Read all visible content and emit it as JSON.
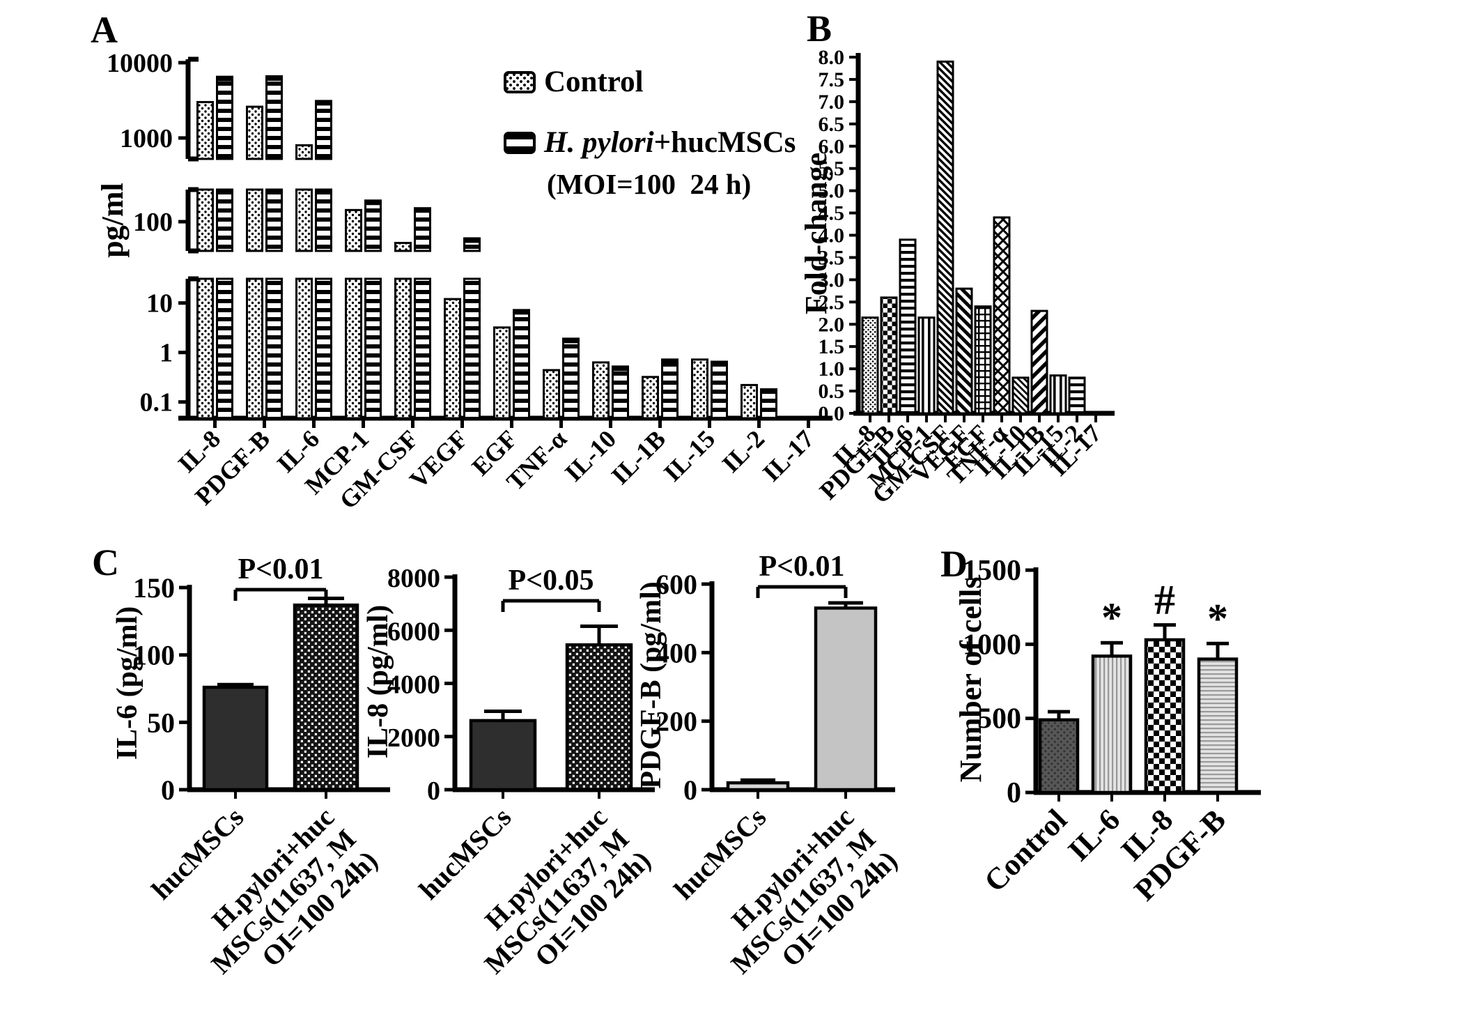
{
  "page": {
    "bg": "#ffffff",
    "ink": "#000000"
  },
  "panel_labels": {
    "a": "A",
    "b": "B",
    "c": "C",
    "d": "D"
  },
  "legend": {
    "control_label": "Control",
    "hp_species": "H. pylori",
    "hp_rest": "+hucMSCs",
    "hp_line2": "(MOI=100  24 h)"
  },
  "chart_data": [
    {
      "id": "A",
      "type": "bar",
      "scale": "log-broken",
      "title": "",
      "xlabel": "",
      "ylabel": "pg/ml",
      "legend_position": "top-right",
      "categories": [
        "IL-8",
        "PDGF-B",
        "IL-6",
        "MCP-1",
        "GM-CSF",
        "VEGF",
        "EGF",
        "TNF-α",
        "IL-10",
        "IL-1B",
        "IL-15",
        "IL-2",
        "IL-17"
      ],
      "series": [
        {
          "name": "Control",
          "pattern": "dots",
          "values": [
            3000,
            2600,
            800,
            190,
            31,
            12,
            3.2,
            0.44,
            0.63,
            0.32,
            0.72,
            0.22,
            0
          ]
        },
        {
          "name": "H. pylori+hucMSCs (MOI=100 24 h)",
          "pattern": "hstripes",
          "values": [
            6500,
            6600,
            3100,
            320,
            210,
            40,
            7.2,
            1.9,
            0.52,
            0.72,
            0.65,
            0.18,
            0
          ]
        }
      ],
      "axis_segments": [
        {
          "tick_labels": [
            "10000",
            "1000"
          ],
          "tick_values": [
            10000,
            1000
          ]
        },
        {
          "tick_labels": [
            "100"
          ],
          "tick_values": [
            100
          ]
        },
        {
          "tick_labels": [
            "10",
            "1",
            "0.1"
          ],
          "tick_values": [
            10,
            1,
            0.1
          ]
        }
      ]
    },
    {
      "id": "B",
      "type": "bar",
      "title": "",
      "xlabel": "",
      "ylabel": "Fold-change",
      "ylim": [
        0,
        8
      ],
      "grid": false,
      "categories": [
        "IL-8",
        "PDGF-B",
        "IL-6",
        "MCP-1",
        "GM-CSF",
        "VEGF",
        "EGF",
        "TNF-α",
        "IL-10",
        "IL-1B",
        "IL-15",
        "IL-2",
        "IL-17"
      ],
      "values": [
        2.15,
        2.6,
        3.9,
        2.15,
        7.9,
        2.8,
        2.4,
        4.4,
        0.8,
        2.3,
        0.85,
        0.8,
        0
      ],
      "patterns": [
        "dots-fine",
        "checker",
        "hlines",
        "vlines",
        "diag-down-a",
        "diag-down-b",
        "grid",
        "diag-cross",
        "diag-down-thin",
        "diag-up-wide",
        "vlines",
        "hlines",
        "none"
      ],
      "ytick_labels": [
        "8.0",
        "7.5",
        "7.0",
        "6.5",
        "6.0",
        "5.5",
        "5.0",
        "4.5",
        "4.0",
        "3.5",
        "3.0",
        "2.5",
        "2.0",
        "1.5",
        "1.0",
        "0.5",
        "0.0"
      ]
    },
    {
      "id": "C1",
      "type": "bar",
      "ylabel": "IL-6 (pg/ml)",
      "pvalue": "P<0.01",
      "ylim": [
        0,
        150
      ],
      "ytick_values": [
        0,
        50,
        100,
        150
      ],
      "ytick_labels": [
        "0",
        "50",
        "100",
        "150"
      ],
      "bars": [
        {
          "label_lines": [
            "hucMSCs"
          ],
          "value": 76,
          "error": 2,
          "pattern": "solid-dark"
        },
        {
          "label_lines": [
            "H.pylori+huc",
            "MSCs(11637, M",
            "OI=100  24h)"
          ],
          "value": 137,
          "error": 5,
          "pattern": "checker-inv"
        }
      ]
    },
    {
      "id": "C2",
      "type": "bar",
      "ylabel": "IL-8 (pg/ml)",
      "pvalue": "P<0.05",
      "ylim": [
        0,
        8000
      ],
      "ytick_values": [
        0,
        2000,
        4000,
        6000,
        8000
      ],
      "ytick_labels": [
        "0",
        "2000",
        "4000",
        "6000",
        "8000"
      ],
      "bars": [
        {
          "label_lines": [
            "hucMSCs"
          ],
          "value": 2600,
          "error": 350,
          "pattern": "solid-dark"
        },
        {
          "label_lines": [
            "H.pylori+huc",
            "MSCs(11637, M",
            "OI=100  24h)"
          ],
          "value": 5450,
          "error": 700,
          "pattern": "checker-inv"
        }
      ]
    },
    {
      "id": "C3",
      "type": "bar",
      "ylabel": "PDGF-B (pg/ml)",
      "pvalue": "P<0.01",
      "ylim": [
        0,
        600
      ],
      "ytick_values": [
        0,
        200,
        400,
        600
      ],
      "ytick_labels": [
        "0",
        "200",
        "400",
        "600"
      ],
      "bars": [
        {
          "label_lines": [
            "hucMSCs"
          ],
          "value": 20,
          "error": 8,
          "pattern": "gray-light"
        },
        {
          "label_lines": [
            "H.pylori+huc",
            "MSCs(11637, M",
            "OI=100  24h)"
          ],
          "value": 530,
          "error": 15,
          "pattern": "gray-mid"
        }
      ]
    },
    {
      "id": "D",
      "type": "bar",
      "ylabel": "Number of cells",
      "ylim": [
        0,
        1500
      ],
      "ytick_values": [
        0,
        500,
        1000,
        1500
      ],
      "ytick_labels": [
        "0",
        "500",
        "1000",
        "1500"
      ],
      "bars": [
        {
          "label_lines": [
            "Control"
          ],
          "value": 490,
          "error": 55,
          "pattern": "dots-dark",
          "annotation": ""
        },
        {
          "label_lines": [
            "IL-6"
          ],
          "value": 920,
          "error": 90,
          "pattern": "vlines-light",
          "annotation": "*"
        },
        {
          "label_lines": [
            "IL-8"
          ],
          "value": 1030,
          "error": 100,
          "pattern": "checker-big",
          "annotation": "#"
        },
        {
          "label_lines": [
            "PDGF-B"
          ],
          "value": 900,
          "error": 105,
          "pattern": "hlines-light",
          "annotation": "*"
        }
      ]
    }
  ]
}
